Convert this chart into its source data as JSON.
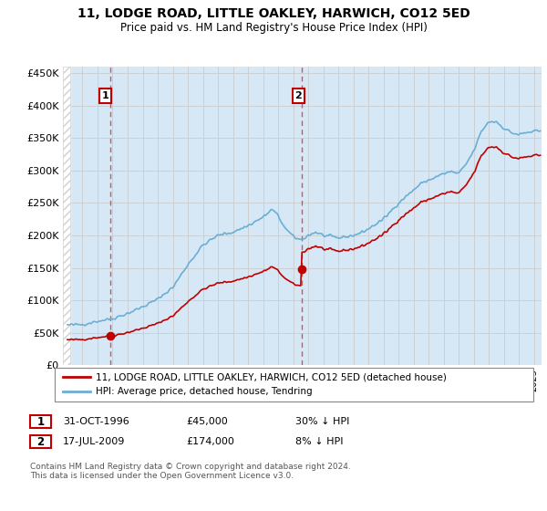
{
  "title": "11, LODGE ROAD, LITTLE OAKLEY, HARWICH, CO12 5ED",
  "subtitle": "Price paid vs. HM Land Registry's House Price Index (HPI)",
  "ylim": [
    0,
    460000
  ],
  "yticks": [
    0,
    50000,
    100000,
    150000,
    200000,
    250000,
    300000,
    350000,
    400000,
    450000
  ],
  "ytick_labels": [
    "£0",
    "£50K",
    "£100K",
    "£150K",
    "£200K",
    "£250K",
    "£300K",
    "£350K",
    "£400K",
    "£450K"
  ],
  "hpi_color": "#6baed6",
  "price_color": "#c00000",
  "fill_color": "#d6e8f5",
  "t1": 1996.833,
  "t2": 2009.542,
  "price1": 45000,
  "price2": 174000,
  "legend_line1": "11, LODGE ROAD, LITTLE OAKLEY, HARWICH, CO12 5ED (detached house)",
  "legend_line2": "HPI: Average price, detached house, Tendring",
  "table_row1_num": "1",
  "table_row1_date": "31-OCT-1996",
  "table_row1_price": "£45,000",
  "table_row1_hpi": "30% ↓ HPI",
  "table_row2_num": "2",
  "table_row2_date": "17-JUL-2009",
  "table_row2_price": "£174,000",
  "table_row2_hpi": "8% ↓ HPI",
  "footer": "Contains HM Land Registry data © Crown copyright and database right 2024.\nThis data is licensed under the Open Government Licence v3.0.",
  "grid_color": "#cccccc",
  "vline_color": "#e05050",
  "hatch_color": "#d0d0d0",
  "xlim_start": 1993.7,
  "xlim_end": 2025.5
}
